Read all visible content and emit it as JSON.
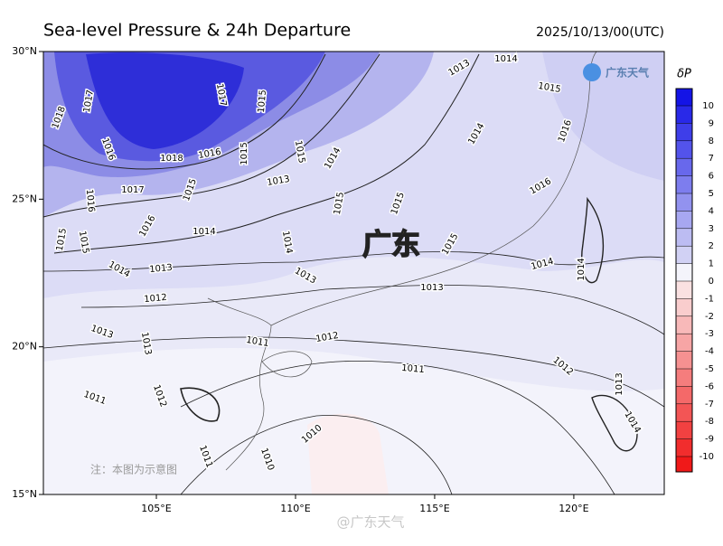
{
  "header": {
    "title": "Sea-level Pressure & 24h Departure",
    "time": "2025/10/13/00(UTC)"
  },
  "map": {
    "lon_range": [
      100.94,
      123.25
    ],
    "lat_range": [
      15,
      30
    ],
    "lat_ticks": [
      {
        "value": 30,
        "label": "30°N"
      },
      {
        "value": 25,
        "label": "25°N"
      },
      {
        "value": 20,
        "label": "20°N"
      },
      {
        "value": 15,
        "label": "15°N"
      }
    ],
    "lon_ticks": [
      {
        "value": 105,
        "label": "105°E"
      },
      {
        "value": 110,
        "label": "110°E"
      },
      {
        "value": 115,
        "label": "115°E"
      },
      {
        "value": 120,
        "label": "120°E"
      }
    ],
    "region_label": "广东",
    "note": "注：本图为示意图",
    "contour_labels": [
      1017,
      1018,
      1016,
      1017,
      1015,
      1018,
      1016,
      1017,
      1015,
      1015,
      1014,
      1013,
      1015,
      1016,
      1016,
      1014,
      1015,
      1015,
      1014,
      1013,
      1012,
      1014,
      1013,
      1015,
      1015,
      1015,
      1014,
      1013,
      1014,
      1015,
      1016,
      1016,
      1014,
      1014,
      1013,
      1012,
      1011,
      1013,
      1013,
      1012,
      1011,
      1011,
      1012,
      1013,
      1014,
      1010,
      1010,
      1011
    ]
  },
  "colorbar": {
    "title": "δP",
    "ticks": [
      10,
      9,
      8,
      7,
      6,
      5,
      4,
      3,
      2,
      1,
      0,
      -1,
      -2,
      -3,
      -4,
      -5,
      -6,
      -7,
      -8,
      -9,
      -10
    ]
  },
  "logo": "广东天气",
  "watermark": "@广东天气"
}
